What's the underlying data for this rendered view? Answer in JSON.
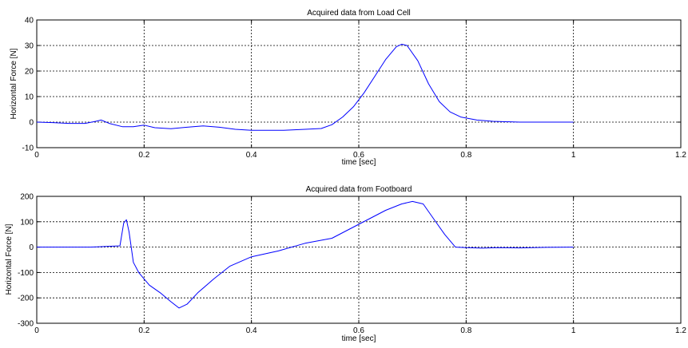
{
  "chart_data": [
    {
      "type": "line",
      "title": "Acquired data from Load Cell",
      "xlabel": "time [sec]",
      "ylabel": "Horizontal Force [N]",
      "xlim": [
        0,
        1.2
      ],
      "ylim": [
        -10,
        40
      ],
      "xticks": [
        "0",
        "0.2",
        "0.4",
        "0.6",
        "0.8",
        "1",
        "1.2"
      ],
      "yticks": [
        "-10",
        "0",
        "10",
        "20",
        "30",
        "40"
      ],
      "grid": true,
      "color": "#0000ff",
      "series": [
        {
          "x": [
            0,
            0.03,
            0.06,
            0.09,
            0.11,
            0.12,
            0.135,
            0.16,
            0.18,
            0.2,
            0.22,
            0.25,
            0.28,
            0.31,
            0.34,
            0.37,
            0.4,
            0.43,
            0.46,
            0.5,
            0.53,
            0.55,
            0.57,
            0.59,
            0.61,
            0.63,
            0.65,
            0.67,
            0.68,
            0.69,
            0.71,
            0.73,
            0.75,
            0.77,
            0.79,
            0.82,
            0.85,
            0.9,
            0.95,
            1.0
          ],
          "y": [
            0,
            -0.2,
            -0.5,
            -0.5,
            0.3,
            0.8,
            -0.5,
            -1.8,
            -1.8,
            -1.2,
            -2.2,
            -2.6,
            -2.0,
            -1.5,
            -2.0,
            -2.8,
            -3.2,
            -3.2,
            -3.2,
            -2.8,
            -2.5,
            -1.0,
            2.0,
            6.0,
            11.5,
            18.0,
            24.5,
            29.5,
            30.5,
            30.0,
            24.0,
            15.0,
            8.0,
            4.0,
            2.0,
            0.8,
            0.3,
            0,
            0,
            0
          ]
        }
      ]
    },
    {
      "type": "line",
      "title": "Acquired data from Footboard",
      "xlabel": "time [sec]",
      "ylabel": "Horizontal Force [N]",
      "xlim": [
        0,
        1.2
      ],
      "ylim": [
        -300,
        200
      ],
      "xticks": [
        "0",
        "0.2",
        "0.4",
        "0.6",
        "0.8",
        "1",
        "1.2"
      ],
      "yticks": [
        "-300",
        "-200",
        "-100",
        "0",
        "100",
        "200"
      ],
      "grid": true,
      "color": "#0000ff",
      "series": [
        {
          "x": [
            0,
            0.1,
            0.155,
            0.162,
            0.167,
            0.172,
            0.18,
            0.19,
            0.2,
            0.21,
            0.23,
            0.25,
            0.265,
            0.28,
            0.3,
            0.33,
            0.36,
            0.4,
            0.45,
            0.5,
            0.55,
            0.6,
            0.65,
            0.68,
            0.7,
            0.72,
            0.74,
            0.76,
            0.78,
            0.8,
            0.83,
            0.86,
            0.9,
            0.95,
            1.0
          ],
          "y": [
            0,
            0,
            5,
            95,
            108,
            60,
            -60,
            -100,
            -125,
            -150,
            -180,
            -215,
            -240,
            -225,
            -180,
            -125,
            -75,
            -38,
            -15,
            15,
            35,
            90,
            145,
            170,
            180,
            170,
            110,
            50,
            0,
            -2,
            -4,
            -2,
            -3,
            -1,
            0
          ]
        }
      ]
    }
  ]
}
